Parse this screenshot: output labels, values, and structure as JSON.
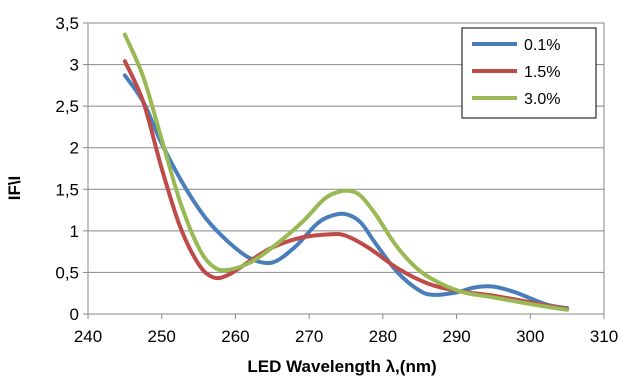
{
  "chart_data": {
    "type": "line",
    "title": "",
    "xlabel": "LED Wavelength λ,(nm)",
    "ylabel": "IF\\I",
    "xlim": [
      240,
      310
    ],
    "ylim": [
      0,
      3.5
    ],
    "x_ticks": [
      240,
      250,
      260,
      270,
      280,
      290,
      300,
      310
    ],
    "y_ticks": [
      0,
      0.5,
      1,
      1.5,
      2,
      2.5,
      3,
      3.5
    ],
    "x_tick_labels": [
      "240",
      "250",
      "260",
      "270",
      "280",
      "290",
      "300",
      "310"
    ],
    "y_tick_labels": [
      "0",
      "0,5",
      "1",
      "1,5",
      "2",
      "2,5",
      "3",
      "3,5"
    ],
    "grid": "horizontal",
    "legend_position": "top-right",
    "series": [
      {
        "name": "0.1%",
        "color": "#4a7ebb",
        "points": [
          [
            245,
            2.87
          ],
          [
            247.5,
            2.55
          ],
          [
            250,
            2.05
          ],
          [
            253,
            1.55
          ],
          [
            256,
            1.15
          ],
          [
            259,
            0.87
          ],
          [
            262,
            0.67
          ],
          [
            265,
            0.62
          ],
          [
            268,
            0.8
          ],
          [
            271,
            1.08
          ],
          [
            273,
            1.18
          ],
          [
            275,
            1.2
          ],
          [
            277,
            1.1
          ],
          [
            279,
            0.85
          ],
          [
            282,
            0.5
          ],
          [
            285,
            0.28
          ],
          [
            287,
            0.23
          ],
          [
            290,
            0.26
          ],
          [
            292.5,
            0.32
          ],
          [
            295,
            0.33
          ],
          [
            298,
            0.26
          ],
          [
            302,
            0.12
          ],
          [
            305,
            0.07
          ]
        ]
      },
      {
        "name": "1.5%",
        "color": "#be4b48",
        "points": [
          [
            245,
            3.04
          ],
          [
            247.5,
            2.55
          ],
          [
            250,
            1.75
          ],
          [
            252.5,
            1.05
          ],
          [
            255,
            0.6
          ],
          [
            257,
            0.44
          ],
          [
            259,
            0.47
          ],
          [
            262,
            0.64
          ],
          [
            265,
            0.8
          ],
          [
            269,
            0.92
          ],
          [
            273,
            0.96
          ],
          [
            275,
            0.94
          ],
          [
            278,
            0.8
          ],
          [
            282,
            0.55
          ],
          [
            286,
            0.37
          ],
          [
            290,
            0.28
          ],
          [
            295,
            0.22
          ],
          [
            300,
            0.14
          ],
          [
            305,
            0.06
          ]
        ]
      },
      {
        "name": "3.0%",
        "color": "#98b954",
        "points": [
          [
            245,
            3.36
          ],
          [
            247.5,
            2.85
          ],
          [
            250,
            2.1
          ],
          [
            252.5,
            1.35
          ],
          [
            255,
            0.8
          ],
          [
            257,
            0.57
          ],
          [
            259,
            0.53
          ],
          [
            262,
            0.62
          ],
          [
            265,
            0.8
          ],
          [
            269,
            1.1
          ],
          [
            272,
            1.38
          ],
          [
            274,
            1.47
          ],
          [
            275.5,
            1.48
          ],
          [
            277,
            1.42
          ],
          [
            279,
            1.2
          ],
          [
            282,
            0.8
          ],
          [
            285,
            0.52
          ],
          [
            288,
            0.36
          ],
          [
            291,
            0.26
          ],
          [
            295,
            0.2
          ],
          [
            300,
            0.12
          ],
          [
            305,
            0.05
          ]
        ]
      }
    ]
  }
}
